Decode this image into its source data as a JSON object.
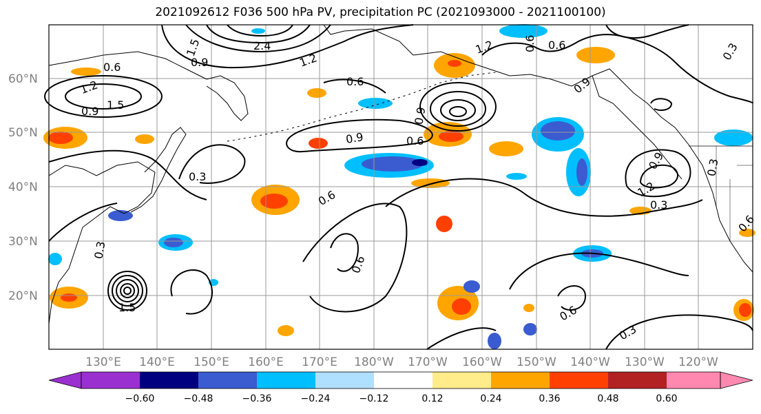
{
  "title": "2021092612 F036 500 hPa PV, precipitation PC (2021093000 - 2021100100)",
  "colors": {
    "neg_06": "#9b30d0",
    "neg_048": "#000080",
    "neg_036": "#3a5cd0",
    "neg_024": "#00bfff",
    "neg_012": "#b0e0ff",
    "zero": "#ffffff",
    "pos_012": "#ffec8b",
    "pos_024": "#ffa500",
    "pos_036": "#ff4000",
    "pos_048": "#b22222",
    "pos_06": "#ff88b0"
  },
  "lat_labels": [
    "60°N",
    "50°N",
    "40°N",
    "30°N",
    "20°N"
  ],
  "lon_labels": [
    "130°E",
    "140°E",
    "150°E",
    "160°E",
    "170°E",
    "180°W",
    "170°W",
    "160°W",
    "150°W",
    "140°W",
    "130°W",
    "120°W"
  ],
  "colorbar_labels": [
    "−0.60",
    "−0.48",
    "−0.36",
    "−0.24",
    "−0.12",
    "0.12",
    "0.24",
    "0.36",
    "0.48",
    "0.60"
  ],
  "contour_labels": [
    "0.6",
    "1.2",
    "1.5",
    "0.9",
    "1.5",
    "0.3",
    "0.9",
    "1.2",
    "0.6",
    "0.9",
    "0.6",
    "0.9",
    "0.6",
    "0.6",
    "0.3",
    "0.6",
    "0.9",
    "0.3",
    "0.9",
    "0.6",
    "1.2",
    "0.3",
    "0.6",
    "0.6",
    "0.3",
    "2.4",
    "1.5",
    "1.2",
    "0.3"
  ]
}
